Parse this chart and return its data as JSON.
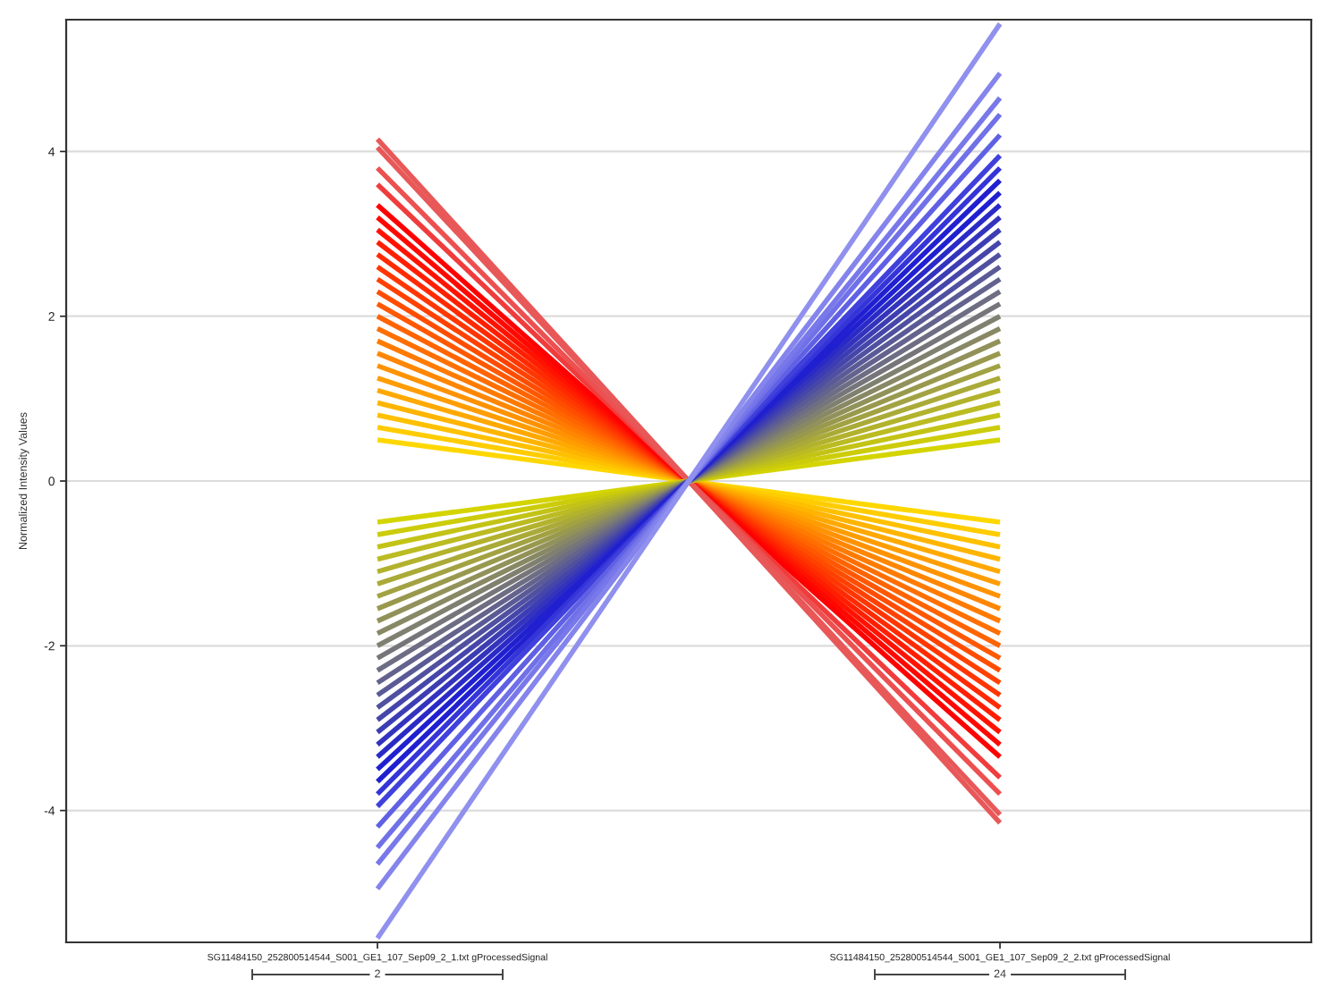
{
  "chart_data": {
    "type": "line",
    "ylabel": "Normalized Intensity Values",
    "categories": [
      "SG11484150_252800514544_S001_GE1_107_Sep09_2_1.txt gProcessedSignal",
      "SG11484150_252800514544_S001_GE1_107_Sep09_2_2.txt gProcessedSignal"
    ],
    "ylim": [
      -5.6,
      5.6
    ],
    "yticks": [
      {
        "value": -4,
        "label": "-4"
      },
      {
        "value": -2,
        "label": "-2"
      },
      0,
      2,
      4
    ],
    "grid": "y",
    "annotations": [
      "2",
      "24"
    ],
    "series": [
      {
        "color": "#ffd700",
        "values": [
          0.5,
          -0.5
        ]
      },
      {
        "color": "#ffcc00",
        "values": [
          0.65,
          -0.65
        ]
      },
      {
        "color": "#ffc000",
        "values": [
          0.8,
          -0.8
        ]
      },
      {
        "color": "#ffb400",
        "values": [
          0.95,
          -0.95
        ]
      },
      {
        "color": "#ffa900",
        "values": [
          1.1,
          -1.1
        ]
      },
      {
        "color": "#ff9d00",
        "values": [
          1.25,
          -1.25
        ]
      },
      {
        "color": "#ff9200",
        "values": [
          1.4,
          -1.4
        ]
      },
      {
        "color": "#ff8600",
        "values": [
          1.55,
          -1.55
        ]
      },
      {
        "color": "#ff7b00",
        "values": [
          1.7,
          -1.7
        ]
      },
      {
        "color": "#ff6f00",
        "values": [
          1.85,
          -1.85
        ]
      },
      {
        "color": "#ff6400",
        "values": [
          2.0,
          -2.0
        ]
      },
      {
        "color": "#ff5800",
        "values": [
          2.15,
          -2.15
        ]
      },
      {
        "color": "#ff4d00",
        "values": [
          2.3,
          -2.3
        ]
      },
      {
        "color": "#ff4100",
        "values": [
          2.45,
          -2.45
        ]
      },
      {
        "color": "#ff3600",
        "values": [
          2.6,
          -2.6
        ]
      },
      {
        "color": "#ff2a00",
        "values": [
          2.75,
          -2.75
        ]
      },
      {
        "color": "#ff1f00",
        "values": [
          2.9,
          -2.9
        ]
      },
      {
        "color": "#ff1300",
        "values": [
          3.05,
          -3.05
        ]
      },
      {
        "color": "#ff0800",
        "values": [
          3.2,
          -3.2
        ]
      },
      {
        "color": "#ff0000",
        "values": [
          3.35,
          -3.35
        ]
      },
      {
        "color": "#f03c3c",
        "values": [
          3.6,
          -3.6
        ]
      },
      {
        "color": "#ec5050",
        "values": [
          3.8,
          -3.8
        ]
      },
      {
        "color": "#e85858",
        "values": [
          4.05,
          -4.05
        ]
      },
      {
        "color": "#e85858",
        "values": [
          4.15,
          -4.15
        ]
      },
      {
        "color": "#d4d400",
        "values": [
          -0.5,
          0.5
        ]
      },
      {
        "color": "#cccc0b",
        "values": [
          -0.65,
          0.65
        ]
      },
      {
        "color": "#c3c316",
        "values": [
          -0.8,
          0.8
        ]
      },
      {
        "color": "#bbbb22",
        "values": [
          -0.95,
          0.95
        ]
      },
      {
        "color": "#b2b22d",
        "values": [
          -1.1,
          1.1
        ]
      },
      {
        "color": "#aaaa38",
        "values": [
          -1.25,
          1.25
        ]
      },
      {
        "color": "#a2a243",
        "values": [
          -1.4,
          1.4
        ]
      },
      {
        "color": "#99994e",
        "values": [
          -1.55,
          1.55
        ]
      },
      {
        "color": "#91915a",
        "values": [
          -1.7,
          1.7
        ]
      },
      {
        "color": "#888865",
        "values": [
          -1.85,
          1.85
        ]
      },
      {
        "color": "#808070",
        "values": [
          -2.0,
          2.0
        ]
      },
      {
        "color": "#76767a",
        "values": [
          -2.15,
          2.15
        ]
      },
      {
        "color": "#6d6d83",
        "values": [
          -2.3,
          2.3
        ]
      },
      {
        "color": "#63638d",
        "values": [
          -2.45,
          2.45
        ]
      },
      {
        "color": "#5a5a96",
        "values": [
          -2.6,
          2.6
        ]
      },
      {
        "color": "#5050a0",
        "values": [
          -2.75,
          2.75
        ]
      },
      {
        "color": "#4646aa",
        "values": [
          -2.9,
          2.9
        ]
      },
      {
        "color": "#3d3db3",
        "values": [
          -3.05,
          3.05
        ]
      },
      {
        "color": "#3333bd",
        "values": [
          -3.2,
          3.2
        ]
      },
      {
        "color": "#2a2ac6",
        "values": [
          -3.35,
          3.35
        ]
      },
      {
        "color": "#2020d0",
        "values": [
          -3.5,
          3.5
        ]
      },
      {
        "color": "#2020d0",
        "values": [
          -3.65,
          3.65
        ]
      },
      {
        "color": "#3434d8",
        "values": [
          -3.8,
          3.8
        ]
      },
      {
        "color": "#4040dc",
        "values": [
          -3.95,
          3.95
        ]
      },
      {
        "color": "#6060e4",
        "values": [
          -4.2,
          4.2
        ]
      },
      {
        "color": "#7070e8",
        "values": [
          -4.45,
          4.45
        ]
      },
      {
        "color": "#7878ea",
        "values": [
          -4.65,
          4.65
        ]
      },
      {
        "color": "#8484ec",
        "values": [
          -4.95,
          4.95
        ]
      },
      {
        "color": "#9090ee",
        "values": [
          -5.55,
          5.55
        ]
      }
    ]
  }
}
